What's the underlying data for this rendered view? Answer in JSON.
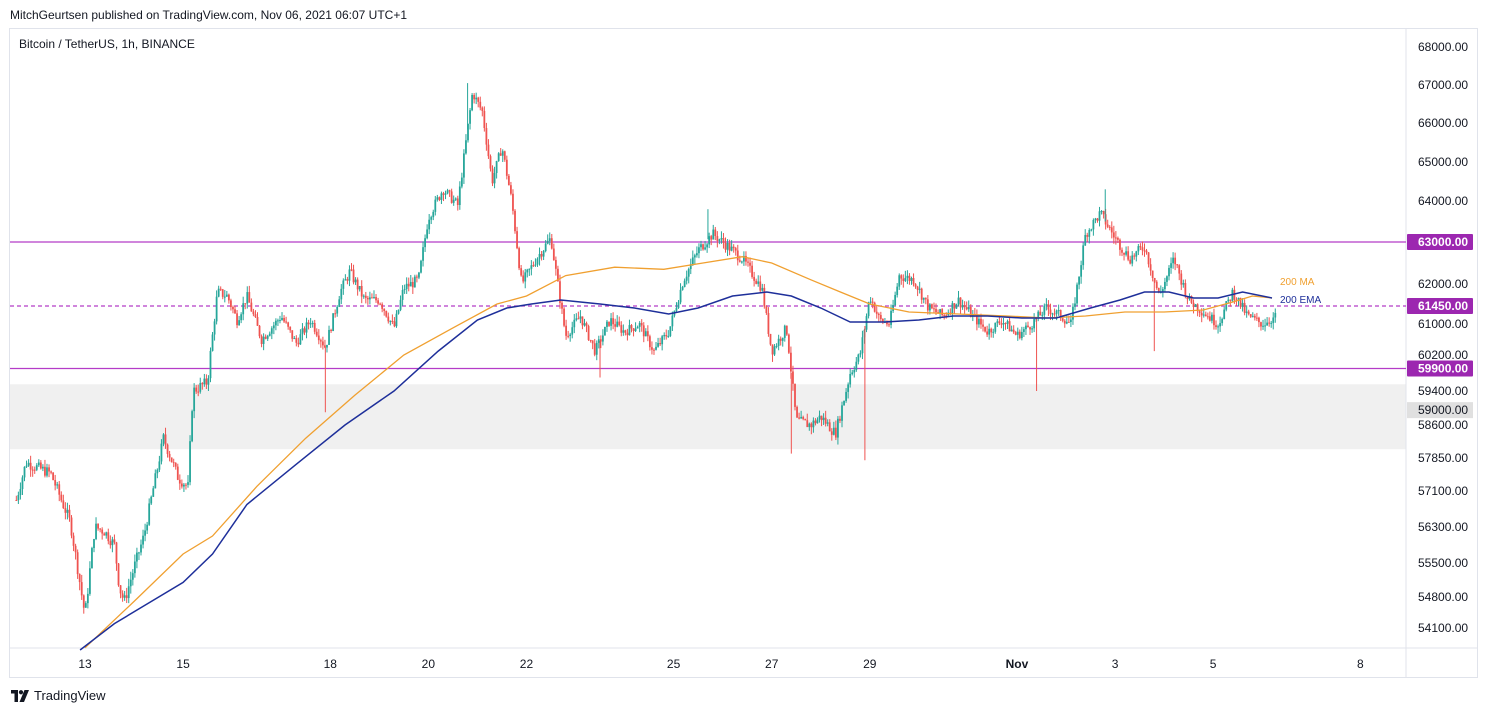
{
  "header": {
    "publisher_line": "MitchGeurtsen published on TradingView.com, Nov 06, 2021 06:07 UTC+1"
  },
  "symbol": {
    "label": "Bitcoin / TetherUS, 1h, BINANCE"
  },
  "footer": {
    "brand": "TradingView"
  },
  "colors": {
    "up": "#26a69a",
    "down": "#ef5350",
    "ma": "#f0a030",
    "ema": "#1e2f9a",
    "level_line": "#b43cc8",
    "level_tag": "#9c27b0",
    "zone": "#f0f0f0",
    "zone_tag": "#e0e0e0"
  },
  "chart_data": {
    "type": "candlestick",
    "title": "",
    "grid": false,
    "x_ticks": [
      {
        "label": "13",
        "day": 13
      },
      {
        "label": "15",
        "day": 15
      },
      {
        "label": "18",
        "day": 18
      },
      {
        "label": "20",
        "day": 20
      },
      {
        "label": "22",
        "day": 22
      },
      {
        "label": "25",
        "day": 25
      },
      {
        "label": "27",
        "day": 27
      },
      {
        "label": "29",
        "day": 29
      },
      {
        "label": "Nov",
        "day": 32
      },
      {
        "label": "3",
        "day": 34
      },
      {
        "label": "5",
        "day": 36
      },
      {
        "label": "8",
        "day": 39
      }
    ],
    "x_range_days": [
      11.5,
      40.8
    ],
    "y_range": [
      53600,
      68350
    ],
    "y_ticks": [
      "54100.00",
      "54800.00",
      "55500.00",
      "56300.00",
      "57100.00",
      "57850.00",
      "58600.00",
      "59400.00",
      "60200.00",
      "61000.00",
      "62000.00",
      "63000.00",
      "64000.00",
      "65000.00",
      "66000.00",
      "67000.00",
      "68000.00"
    ],
    "levels": [
      {
        "label": "63000.00",
        "value": 63000,
        "style": "solid"
      },
      {
        "label": "61450.00",
        "value": 61450,
        "style": "dashed"
      },
      {
        "label": "59900.00",
        "value": 59900,
        "style": "solid"
      }
    ],
    "zone": {
      "label": "59000.00",
      "from": 58050,
      "to": 59550
    },
    "legend": [
      {
        "name": "200 MA",
        "color": "#f0a030"
      },
      {
        "name": "200 EMA",
        "color": "#1e2f9a"
      }
    ],
    "price_path": [
      [
        11.6,
        56900
      ],
      [
        11.8,
        57750
      ],
      [
        12.3,
        57500
      ],
      [
        12.7,
        56400
      ],
      [
        13.0,
        54400
      ],
      [
        13.2,
        56300
      ],
      [
        13.4,
        56200
      ],
      [
        13.6,
        55900
      ],
      [
        13.7,
        55000
      ],
      [
        13.8,
        54700
      ],
      [
        14.2,
        56100
      ],
      [
        14.6,
        58300
      ],
      [
        14.9,
        57400
      ],
      [
        15.1,
        57200
      ],
      [
        15.2,
        59400
      ],
      [
        15.5,
        59600
      ],
      [
        15.7,
        61800
      ],
      [
        15.9,
        61700
      ],
      [
        16.1,
        61100
      ],
      [
        16.3,
        61700
      ],
      [
        16.6,
        60600
      ],
      [
        17.0,
        61200
      ],
      [
        17.3,
        60500
      ],
      [
        17.6,
        61100
      ],
      [
        17.9,
        60400
      ],
      [
        18.2,
        61800
      ],
      [
        18.4,
        62300
      ],
      [
        18.7,
        61600
      ],
      [
        19.0,
        61600
      ],
      [
        19.3,
        60900
      ],
      [
        19.5,
        61900
      ],
      [
        19.8,
        62100
      ],
      [
        20.0,
        63600
      ],
      [
        20.3,
        64300
      ],
      [
        20.6,
        63900
      ],
      [
        20.9,
        66800
      ],
      [
        21.1,
        66300
      ],
      [
        21.3,
        64500
      ],
      [
        21.5,
        65400
      ],
      [
        21.7,
        64000
      ],
      [
        21.9,
        62000
      ],
      [
        22.2,
        62600
      ],
      [
        22.5,
        63100
      ],
      [
        22.8,
        60700
      ],
      [
        23.1,
        61200
      ],
      [
        23.4,
        60300
      ],
      [
        23.7,
        61100
      ],
      [
        24.0,
        60800
      ],
      [
        24.3,
        61000
      ],
      [
        24.6,
        60300
      ],
      [
        24.9,
        60800
      ],
      [
        25.2,
        62100
      ],
      [
        25.5,
        62800
      ],
      [
        25.8,
        63200
      ],
      [
        26.1,
        62900
      ],
      [
        26.4,
        62600
      ],
      [
        26.8,
        61900
      ],
      [
        27.0,
        60300
      ],
      [
        27.3,
        60900
      ],
      [
        27.5,
        58700
      ],
      [
        27.8,
        58600
      ],
      [
        28.0,
        58800
      ],
      [
        28.3,
        58400
      ],
      [
        28.6,
        59800
      ],
      [
        28.8,
        60200
      ],
      [
        29.0,
        61700
      ],
      [
        29.2,
        61100
      ],
      [
        29.4,
        61000
      ],
      [
        29.6,
        62200
      ],
      [
        29.9,
        62100
      ],
      [
        30.2,
        61400
      ],
      [
        30.5,
        61200
      ],
      [
        30.8,
        61600
      ],
      [
        31.1,
        61200
      ],
      [
        31.4,
        60800
      ],
      [
        31.7,
        61100
      ],
      [
        32.0,
        60700
      ],
      [
        32.3,
        61000
      ],
      [
        32.6,
        61400
      ],
      [
        32.9,
        61200
      ],
      [
        33.1,
        61000
      ],
      [
        33.4,
        63200
      ],
      [
        33.7,
        63700
      ],
      [
        34.0,
        63100
      ],
      [
        34.3,
        62600
      ],
      [
        34.6,
        62900
      ],
      [
        34.9,
        61700
      ],
      [
        35.2,
        62600
      ],
      [
        35.5,
        61600
      ],
      [
        35.8,
        61300
      ],
      [
        36.1,
        61000
      ],
      [
        36.4,
        61800
      ],
      [
        36.7,
        61200
      ],
      [
        37.0,
        61000
      ],
      [
        37.3,
        61200
      ]
    ],
    "spikes": [
      {
        "day": 17.9,
        "low": 58900
      },
      {
        "day": 23.5,
        "low": 59700
      },
      {
        "day": 27.4,
        "low": 57950
      },
      {
        "day": 28.9,
        "low": 57800
      },
      {
        "day": 32.4,
        "low": 59400
      },
      {
        "day": 34.8,
        "low": 60300
      },
      {
        "day": 20.8,
        "high": 67050
      },
      {
        "day": 33.8,
        "high": 64300
      },
      {
        "day": 25.7,
        "high": 63800
      }
    ],
    "ma_path": [
      [
        13.0,
        53650
      ],
      [
        14.0,
        54700
      ],
      [
        15.0,
        55700
      ],
      [
        15.6,
        56100
      ],
      [
        16.5,
        57200
      ],
      [
        17.5,
        58300
      ],
      [
        18.5,
        59300
      ],
      [
        19.5,
        60200
      ],
      [
        20.5,
        60900
      ],
      [
        21.4,
        61500
      ],
      [
        22.0,
        61700
      ],
      [
        22.8,
        62200
      ],
      [
        23.8,
        62400
      ],
      [
        24.8,
        62350
      ],
      [
        25.6,
        62500
      ],
      [
        26.4,
        62650
      ],
      [
        27.0,
        62500
      ],
      [
        27.8,
        62100
      ],
      [
        28.4,
        61800
      ],
      [
        29.0,
        61500
      ],
      [
        29.8,
        61300
      ],
      [
        30.8,
        61250
      ],
      [
        31.8,
        61200
      ],
      [
        32.6,
        61150
      ],
      [
        33.4,
        61200
      ],
      [
        34.2,
        61300
      ],
      [
        35.0,
        61300
      ],
      [
        35.8,
        61350
      ],
      [
        36.4,
        61550
      ],
      [
        36.8,
        61700
      ],
      [
        37.2,
        61650
      ]
    ],
    "ema_path": [
      [
        12.9,
        53600
      ],
      [
        13.6,
        54200
      ],
      [
        14.2,
        54600
      ],
      [
        15.0,
        55100
      ],
      [
        15.6,
        55700
      ],
      [
        16.3,
        56800
      ],
      [
        17.3,
        57700
      ],
      [
        18.3,
        58600
      ],
      [
        19.3,
        59400
      ],
      [
        20.2,
        60300
      ],
      [
        21.0,
        61100
      ],
      [
        21.6,
        61400
      ],
      [
        22.1,
        61500
      ],
      [
        22.7,
        61600
      ],
      [
        23.5,
        61500
      ],
      [
        24.2,
        61400
      ],
      [
        24.9,
        61250
      ],
      [
        25.5,
        61400
      ],
      [
        26.2,
        61700
      ],
      [
        26.9,
        61800
      ],
      [
        27.4,
        61700
      ],
      [
        28.0,
        61400
      ],
      [
        28.6,
        61050
      ],
      [
        29.3,
        61050
      ],
      [
        30.0,
        61100
      ],
      [
        30.7,
        61200
      ],
      [
        31.4,
        61200
      ],
      [
        32.1,
        61150
      ],
      [
        32.8,
        61150
      ],
      [
        33.5,
        61400
      ],
      [
        34.1,
        61600
      ],
      [
        34.6,
        61800
      ],
      [
        35.1,
        61800
      ],
      [
        35.6,
        61650
      ],
      [
        36.1,
        61650
      ],
      [
        36.6,
        61800
      ],
      [
        37.2,
        61650
      ]
    ]
  }
}
